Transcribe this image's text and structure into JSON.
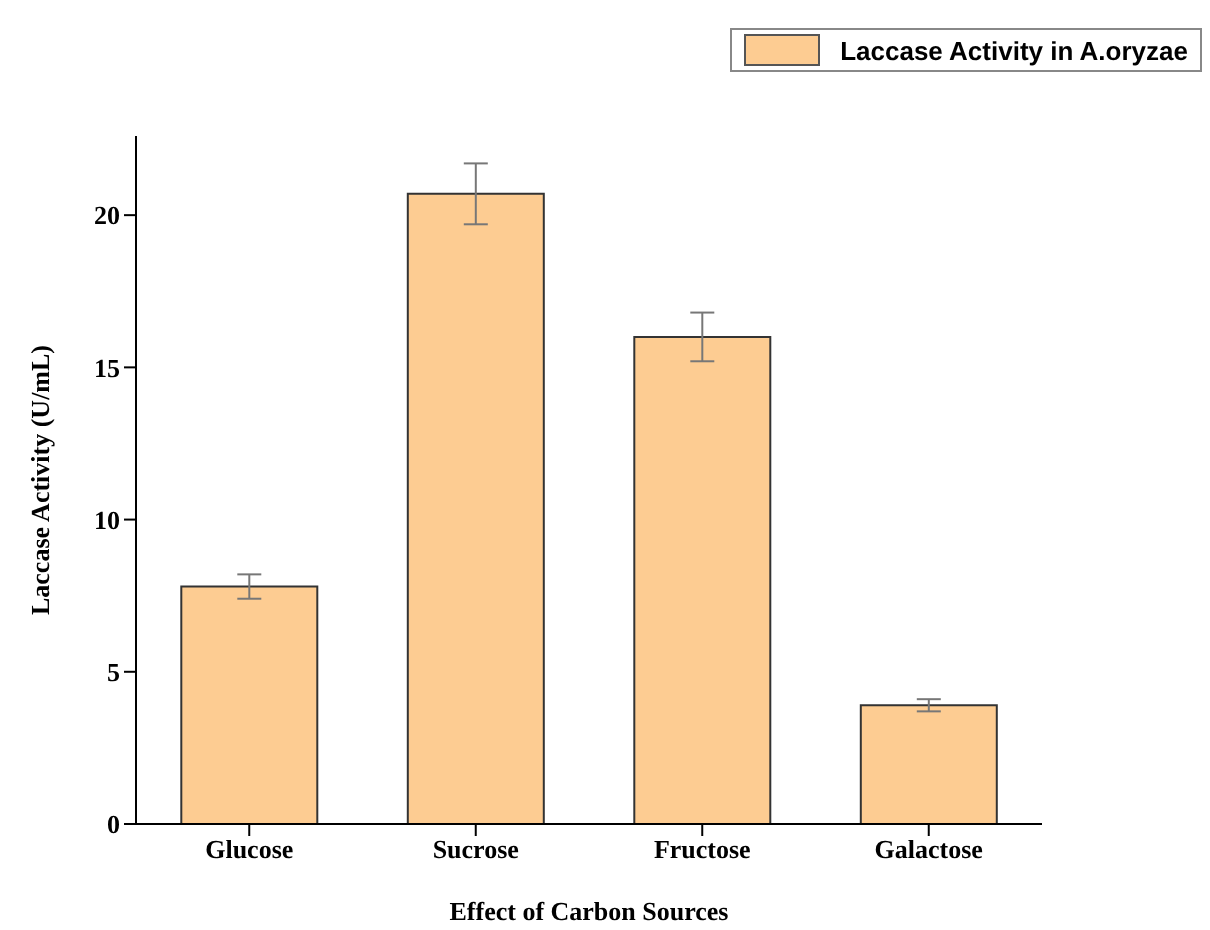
{
  "chart_data": {
    "type": "bar",
    "xlabel": "Effect of Carbon Sources",
    "ylabel": "Laccase Activity (U/mL)",
    "categories": [
      "Glucose",
      "Sucrose",
      "Fructose",
      "Galactose"
    ],
    "series": [
      {
        "name": "Laccase Activity in A.oryzae",
        "color": "#fdcc92",
        "values": [
          7.8,
          20.7,
          16.0,
          3.9
        ],
        "errors": [
          0.4,
          1.0,
          0.8,
          0.2
        ]
      }
    ],
    "ylim": [
      0,
      22.6
    ],
    "yticks": [
      0,
      5,
      10,
      15,
      20
    ],
    "grid": false,
    "legend": "top right"
  }
}
